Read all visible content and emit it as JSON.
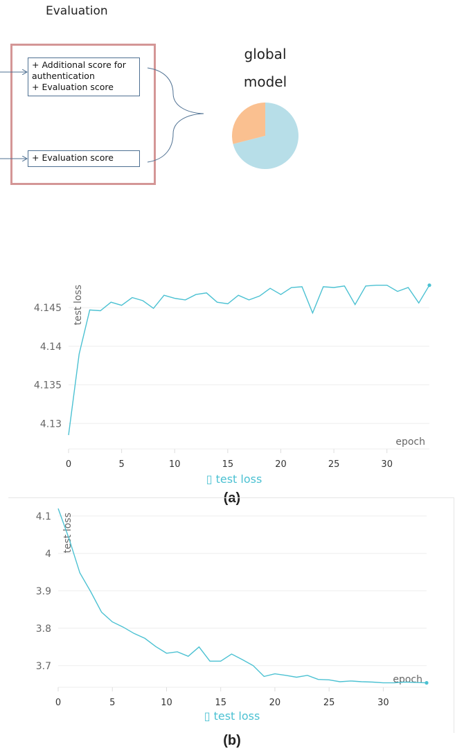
{
  "diagram": {
    "section_title": "Evaluation",
    "box1_lines": [
      "+ Additional score for",
      "authentication",
      "+ Evaluation score"
    ],
    "box2_lines": [
      "+ Evaluation score"
    ],
    "model_label_lines": [
      "global",
      "model"
    ],
    "pie_slices": [
      {
        "value": 0.71,
        "color": "#b7dee8"
      },
      {
        "value": 0.29,
        "color": "#fac090"
      }
    ]
  },
  "chart_data": [
    {
      "type": "line",
      "panel_label": "(a)",
      "xlabel": "epoch",
      "ylabel": "test loss",
      "legend": "test loss",
      "legend_marker": "▯",
      "color": "#4bc1d2",
      "xlim": [
        0,
        34
      ],
      "ylim": [
        4.1285,
        4.1485
      ],
      "xticks": [
        0,
        5,
        10,
        15,
        20,
        25,
        30
      ],
      "yticks": [
        4.13,
        4.135,
        4.14,
        4.145
      ],
      "ytick_labels": [
        "4.13",
        "4.135",
        "4.14",
        "4.145"
      ],
      "x": [
        0,
        1,
        2,
        3,
        4,
        5,
        6,
        7,
        8,
        9,
        10,
        11,
        12,
        13,
        14,
        15,
        16,
        17,
        18,
        19,
        20,
        21,
        22,
        23,
        24,
        25,
        26,
        27,
        28,
        29,
        30,
        31,
        32,
        33,
        34
      ],
      "y": [
        4.1285,
        4.139,
        4.1447,
        4.1446,
        4.1457,
        4.1453,
        4.1463,
        4.1459,
        4.1449,
        4.1466,
        4.1462,
        4.146,
        4.1467,
        4.1469,
        4.1457,
        4.1455,
        4.1466,
        4.146,
        4.1465,
        4.1475,
        4.1467,
        4.1476,
        4.1477,
        4.1443,
        4.1477,
        4.1476,
        4.1478,
        4.1454,
        4.1478,
        4.1479,
        4.1479,
        4.1471,
        4.1476,
        4.1456,
        4.1479
      ]
    },
    {
      "type": "line",
      "panel_label": "(b)",
      "xlabel": "epoch",
      "ylabel": "test loss",
      "legend": "test loss",
      "legend_marker": "▯",
      "color": "#4bc1d2",
      "xlim": [
        0,
        34
      ],
      "ylim": [
        3.644,
        4.12
      ],
      "xticks": [
        0,
        5,
        10,
        15,
        20,
        25,
        30
      ],
      "yticks": [
        3.7,
        3.8,
        3.9,
        4.0,
        4.1
      ],
      "ytick_labels": [
        "3.7",
        "3.8",
        "3.9",
        "4",
        "4.1"
      ],
      "x": [
        0,
        1,
        2,
        3,
        4,
        5,
        6,
        7,
        8,
        9,
        10,
        11,
        12,
        13,
        14,
        15,
        16,
        17,
        18,
        19,
        20,
        21,
        22,
        23,
        24,
        25,
        26,
        27,
        28,
        29,
        30,
        31,
        32,
        33,
        34
      ],
      "y": [
        4.12,
        4.04,
        3.948,
        3.898,
        3.843,
        3.817,
        3.803,
        3.786,
        3.773,
        3.751,
        3.733,
        3.737,
        3.725,
        3.75,
        3.712,
        3.712,
        3.731,
        3.716,
        3.7,
        3.671,
        3.678,
        3.674,
        3.669,
        3.674,
        3.663,
        3.662,
        3.657,
        3.659,
        3.657,
        3.656,
        3.654,
        3.654,
        3.656,
        3.655,
        3.654
      ]
    }
  ]
}
